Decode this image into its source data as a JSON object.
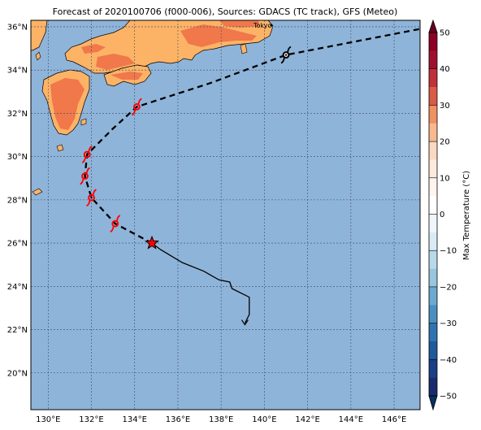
{
  "title": "Forecast of 2020100706 (f000-006), Sources: GDACS (TC track), GFS (Meteo)",
  "city_label": "Tokyo",
  "colorbar": {
    "label": "Max Temperature (°C)",
    "ticks": [
      "50",
      "40",
      "30",
      "20",
      "10",
      "0",
      "−10",
      "−20",
      "−30",
      "−40",
      "−50"
    ],
    "colors": [
      "#67001f",
      "#b2182b",
      "#d6604d",
      "#f4a582",
      "#fddbc7",
      "#ffffff",
      "#d1e5f0",
      "#92c5de",
      "#4393c3",
      "#2166ac",
      "#053061"
    ]
  },
  "colors": {
    "ocean": "#8fb4d9",
    "land": "#fdb366",
    "land_warm": "#f0784a",
    "track": "#000000",
    "storm": "#ff0000"
  },
  "map": {
    "lon_labels": [
      "130°E",
      "132°E",
      "134°E",
      "136°E",
      "138°E",
      "140°E",
      "142°E",
      "144°E",
      "146°E"
    ],
    "lat_labels": [
      "36°N",
      "34°N",
      "32°N",
      "30°N",
      "28°N",
      "26°N",
      "24°N",
      "22°N",
      "20°N"
    ],
    "extent": {
      "lon_min": 129.2,
      "lon_max": 147.2,
      "lat_min": 18.3,
      "lat_max": 36.3
    }
  },
  "storm_positions": [
    {
      "lon": 141.0,
      "lat": 34.7,
      "kind": "extratropical"
    },
    {
      "lon": 134.1,
      "lat": 32.3,
      "kind": "typhoon"
    },
    {
      "lon": 131.8,
      "lat": 30.1,
      "kind": "typhoon"
    },
    {
      "lon": 131.7,
      "lat": 29.1,
      "kind": "typhoon"
    },
    {
      "lon": 132.0,
      "lat": 28.1,
      "kind": "typhoon"
    },
    {
      "lon": 133.1,
      "lat": 26.9,
      "kind": "typhoon"
    },
    {
      "lon": 134.8,
      "lat": 26.0,
      "kind": "current"
    }
  ],
  "track": {
    "forecast": [
      [
        134.8,
        26.0
      ],
      [
        133.1,
        26.9
      ],
      [
        132.0,
        28.1
      ],
      [
        131.7,
        29.1
      ],
      [
        131.8,
        30.1
      ],
      [
        133.0,
        31.3
      ],
      [
        134.1,
        32.3
      ],
      [
        137.5,
        33.4
      ],
      [
        141.0,
        34.7
      ],
      [
        147.2,
        35.9
      ]
    ],
    "observed": [
      [
        134.8,
        26.0
      ],
      [
        135.2,
        25.7
      ],
      [
        136.2,
        25.1
      ],
      [
        137.2,
        24.7
      ],
      [
        137.9,
        24.3
      ],
      [
        138.4,
        24.2
      ],
      [
        138.5,
        23.9
      ],
      [
        139.3,
        23.5
      ],
      [
        139.3,
        22.7
      ],
      [
        139.1,
        22.3
      ]
    ]
  }
}
